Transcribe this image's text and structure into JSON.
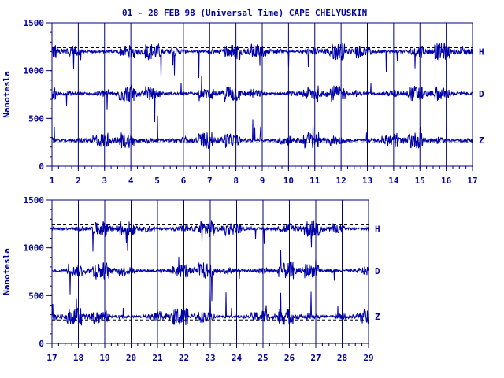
{
  "chart_data": [
    {
      "type": "line",
      "title": "01 - 28 FEB 98 (Universal Time) CAPE CHELYUSKIN",
      "xlabel": "",
      "ylabel": "Nanotesla",
      "xlim": [
        1,
        17
      ],
      "ylim": [
        0,
        1500
      ],
      "x_ticks": [
        "1",
        "2",
        "3",
        "4",
        "5",
        "6",
        "7",
        "8",
        "9",
        "10",
        "11",
        "12",
        "13",
        "14",
        "15",
        "16",
        "17"
      ],
      "y_ticks": [
        "0",
        "500",
        "1000",
        "1500"
      ],
      "baselines": [
        {
          "name": "H",
          "value": 1240
        },
        {
          "name": "Z",
          "value": 245
        }
      ],
      "series": [
        {
          "name": "H",
          "base": 1200
        },
        {
          "name": "D",
          "base": 760
        },
        {
          "name": "Z",
          "base": 270
        }
      ],
      "grid": "vertical day lines"
    },
    {
      "type": "line",
      "title": "",
      "xlabel": "",
      "ylabel": "Nanotesla",
      "xlim": [
        17,
        29
      ],
      "ylim": [
        0,
        1500
      ],
      "x_ticks": [
        "17",
        "18",
        "19",
        "20",
        "21",
        "22",
        "23",
        "24",
        "25",
        "26",
        "27",
        "28",
        "29"
      ],
      "y_ticks": [
        "0",
        "500",
        "1000",
        "1500"
      ],
      "baselines": [
        {
          "name": "H",
          "value": 1240
        },
        {
          "name": "Z",
          "value": 245
        }
      ],
      "series": [
        {
          "name": "H",
          "base": 1200
        },
        {
          "name": "D",
          "base": 760
        },
        {
          "name": "Z",
          "base": 280
        }
      ],
      "grid": "vertical day lines"
    }
  ],
  "colors": {
    "trace": "#0000a8",
    "text": "#00009c",
    "axis": "#000080"
  }
}
